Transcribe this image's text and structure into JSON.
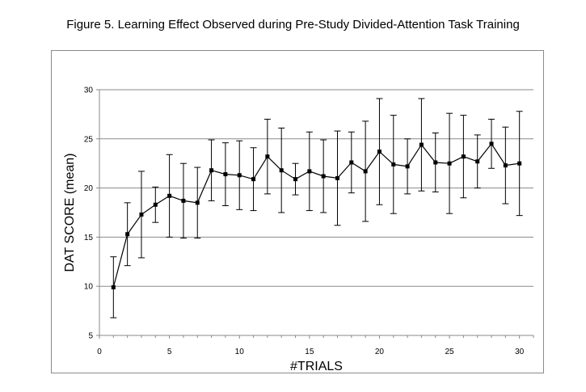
{
  "figure": {
    "title": "Figure 5. Learning Effect Observed during Pre-Study Divided-Attention Task Training"
  },
  "chart_data": {
    "type": "line",
    "title": "",
    "xlabel": "#TRIALS",
    "ylabel": "DAT SCORE (mean)",
    "xlim": [
      0,
      31
    ],
    "ylim": [
      5,
      30
    ],
    "xticks": [
      0,
      5,
      10,
      15,
      20,
      25,
      30
    ],
    "yticks": [
      5,
      10,
      15,
      20,
      25,
      30
    ],
    "grid": "horizontal",
    "legend": "none",
    "line_color": "#000000",
    "series": [
      {
        "x": [
          1,
          2,
          3,
          4,
          5,
          6,
          7,
          8,
          9,
          10,
          11,
          12,
          13,
          14,
          15,
          16,
          17,
          18,
          19,
          20,
          21,
          22,
          23,
          24,
          25,
          26,
          27,
          28,
          29,
          30
        ],
        "y": [
          9.9,
          15.3,
          17.3,
          18.3,
          19.2,
          18.7,
          18.5,
          21.8,
          21.4,
          21.3,
          20.9,
          23.2,
          21.8,
          20.9,
          21.7,
          21.2,
          21.0,
          22.6,
          21.7,
          23.7,
          22.4,
          22.2,
          24.4,
          22.6,
          22.5,
          23.2,
          22.7,
          24.5,
          22.3,
          22.5
        ],
        "err": [
          3.1,
          3.2,
          4.4,
          1.8,
          4.2,
          3.8,
          3.6,
          3.1,
          3.2,
          3.5,
          3.2,
          3.8,
          4.3,
          1.6,
          4.0,
          3.7,
          4.8,
          3.1,
          5.1,
          5.4,
          5.0,
          2.8,
          4.7,
          3.0,
          5.1,
          4.2,
          2.7,
          2.5,
          3.9,
          5.3
        ]
      }
    ]
  }
}
